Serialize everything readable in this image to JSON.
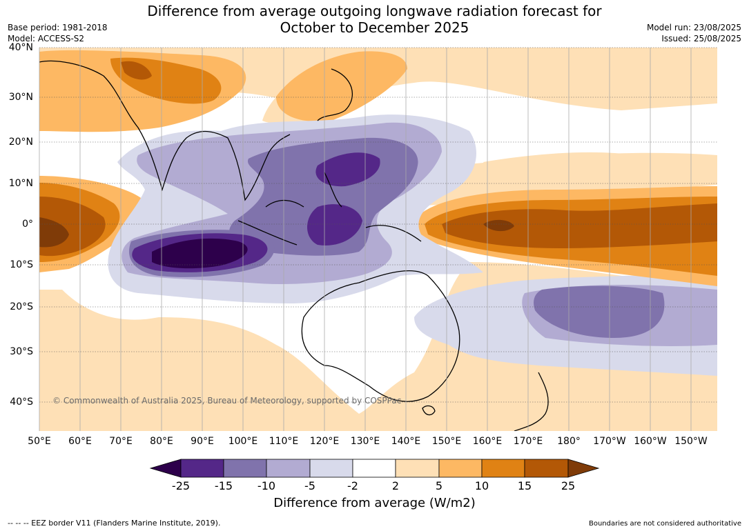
{
  "title_line1": "Difference from average outgoing longwave radiation forecast for",
  "title_line2": "October to December 2025",
  "meta": {
    "base_period": "Base period: 1981-2018",
    "model": "Model: ACCESS-S2",
    "model_run": "Model run: 23/08/2025",
    "issued": "Issued: 25/08/2025"
  },
  "lat_labels": [
    "40°N",
    "30°N",
    "20°N",
    "10°N",
    "0°",
    "10°S",
    "20°S",
    "30°S",
    "40°S"
  ],
  "lon_labels": [
    "50°E",
    "60°E",
    "70°E",
    "80°E",
    "90°E",
    "100°E",
    "110°E",
    "120°E",
    "130°E",
    "140°E",
    "150°E",
    "160°E",
    "170°E",
    "180°",
    "170°W",
    "160°W",
    "150°W"
  ],
  "copyright": "© Commonwealth of Australia 2025, Bureau of Meteorology, supported by COSPPac",
  "colorbar": {
    "labels": [
      "-25",
      "-15",
      "-10",
      "-5",
      "-2",
      "2",
      "5",
      "10",
      "15",
      "25"
    ],
    "colors": [
      "#2d004b",
      "#542788",
      "#8073ac",
      "#b2abd2",
      "#d8daeb",
      "#ffffff",
      "#fee0b6",
      "#fdb863",
      "#e08214",
      "#b35806",
      "#7f3b08"
    ],
    "title": "Difference from average (W/m2)"
  },
  "footer": {
    "left": "--  --  -- EEZ border V11 (Flanders Marine Institute, 2019).",
    "right": "Boundaries are not considered authoritative"
  }
}
